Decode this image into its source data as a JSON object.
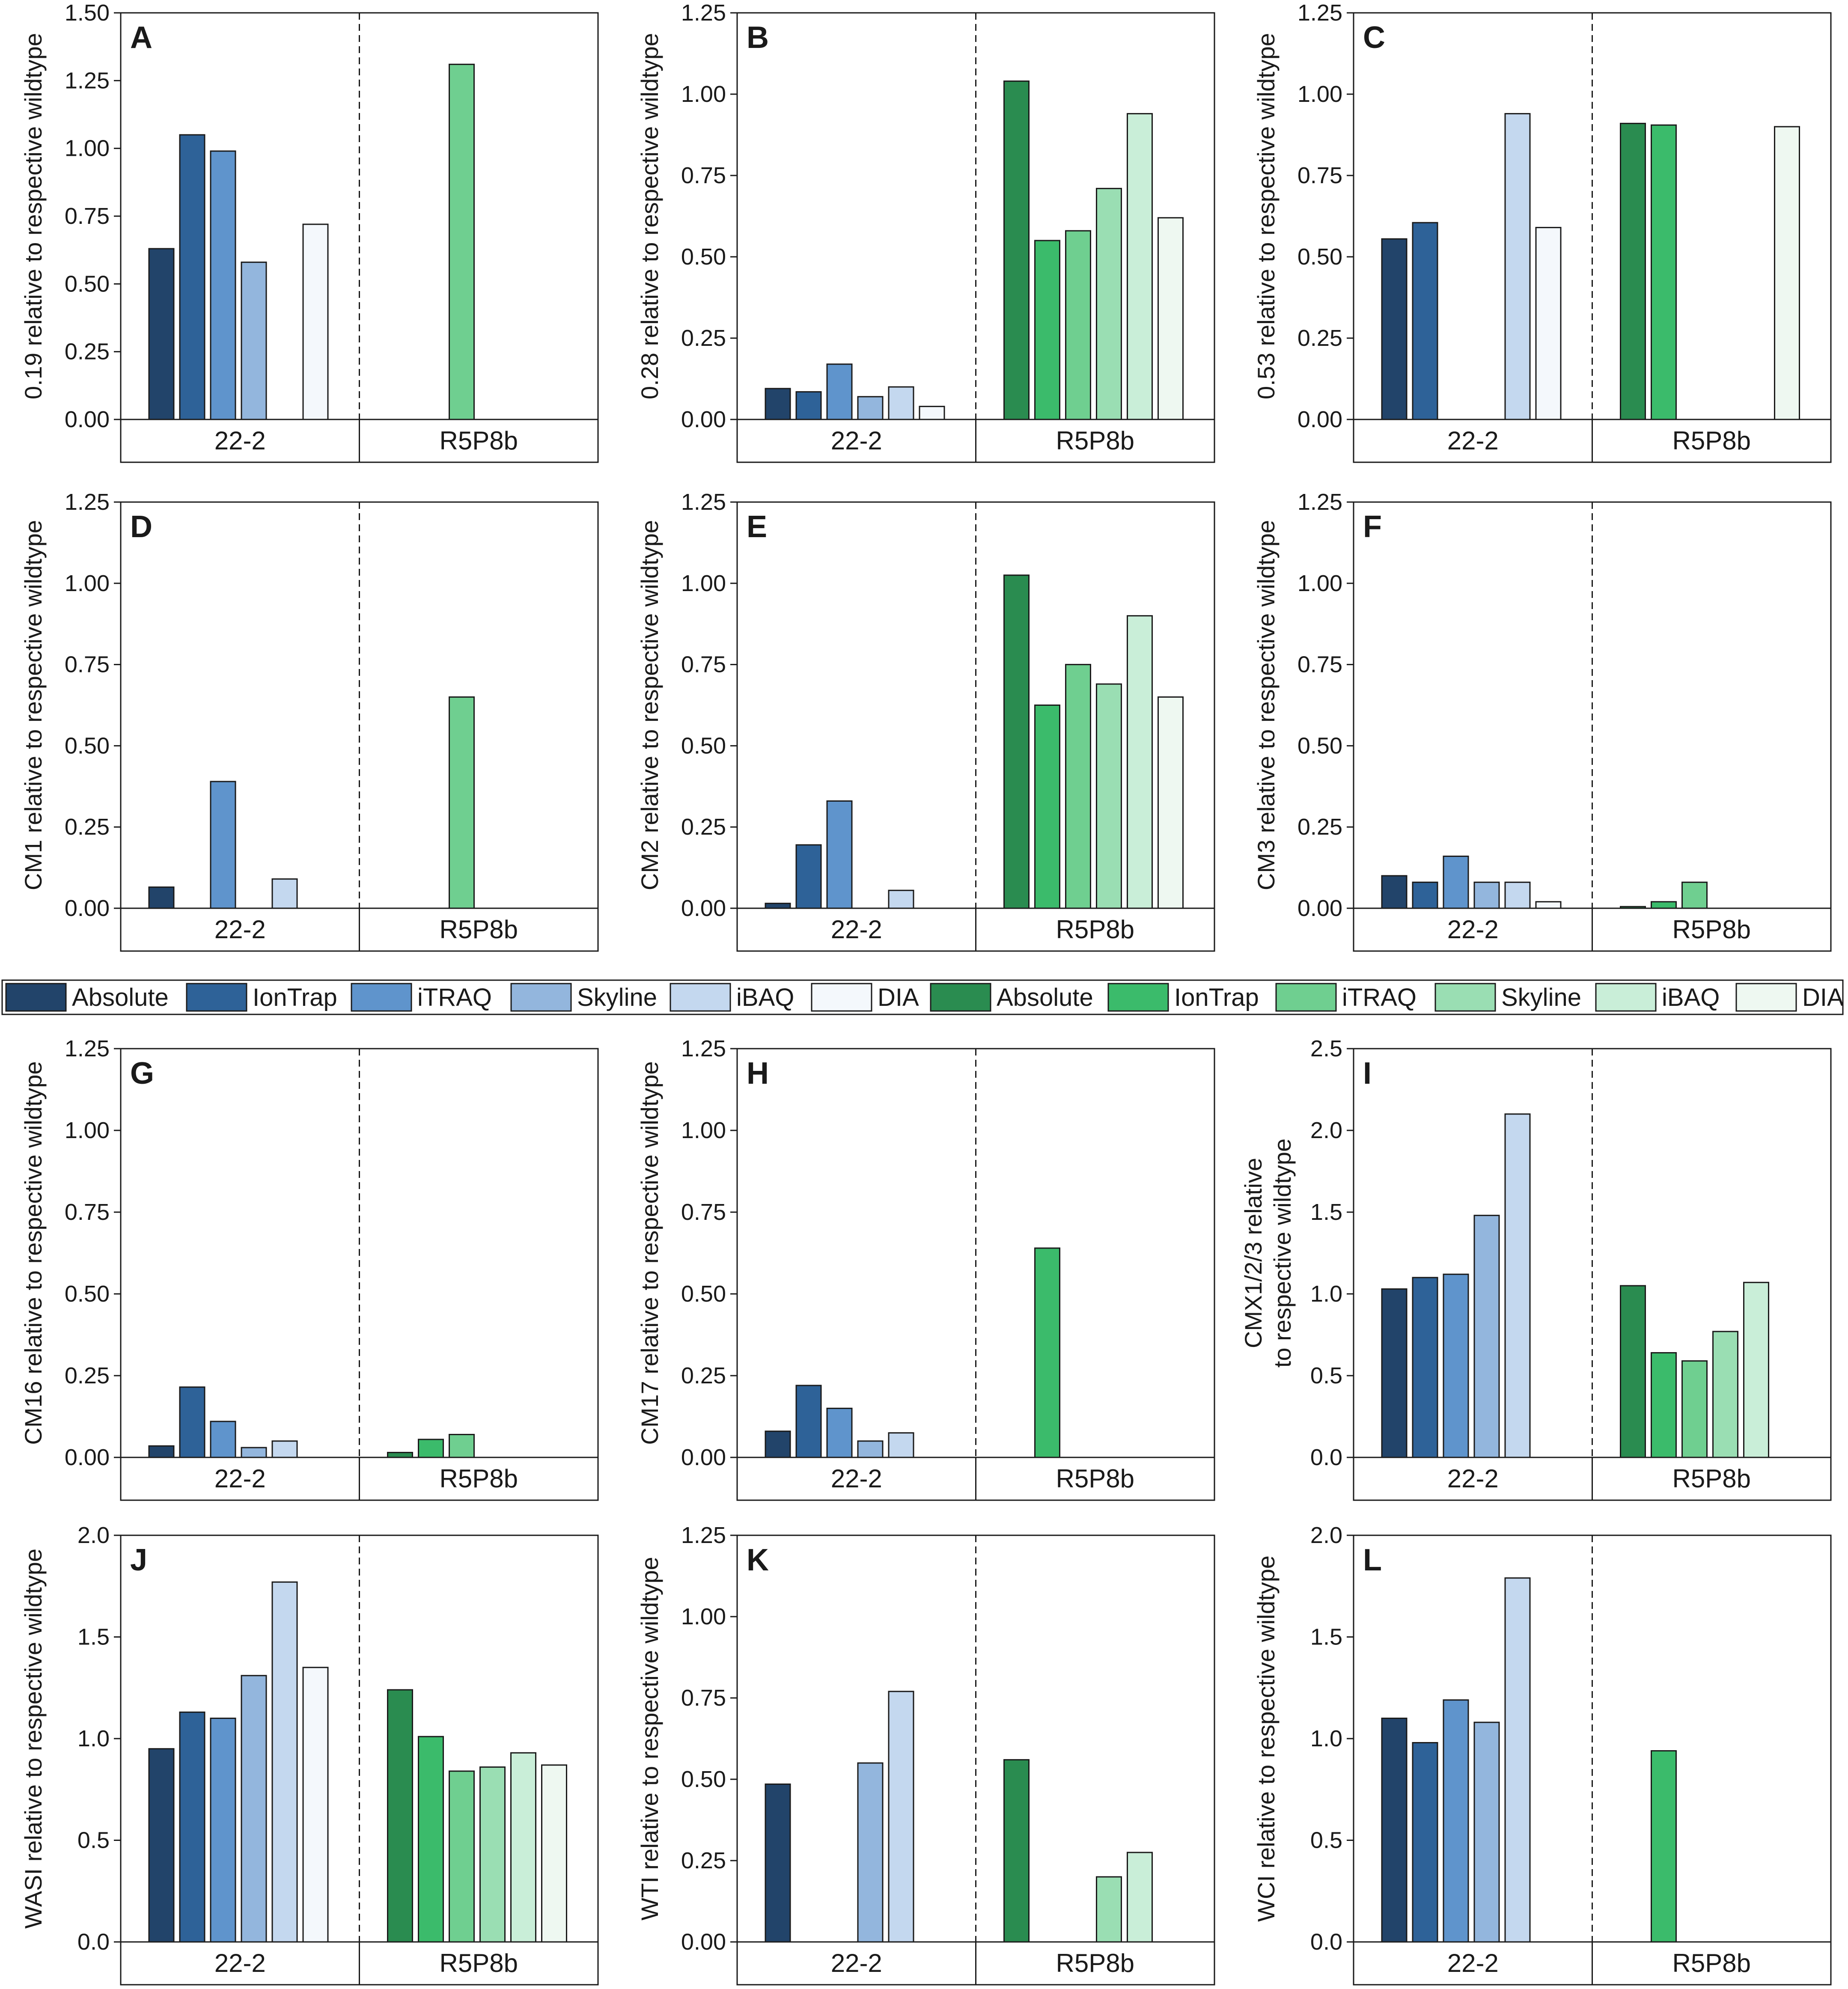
{
  "colors": {
    "blue": [
      "#22446a",
      "#2e6298",
      "#5f94cc",
      "#93b6dd",
      "#c4d8ef",
      "#f4f8fc"
    ],
    "green": [
      "#2a8c50",
      "#3bbb6b",
      "#6fcf90",
      "#9adeb3",
      "#c9eed8",
      "#eef8f1"
    ],
    "stroke": "#1a1a1a"
  },
  "legend": {
    "items": [
      {
        "label": "Absolute",
        "group": "blue",
        "index": 0
      },
      {
        "label": "IonTrap",
        "group": "blue",
        "index": 1
      },
      {
        "label": "iTRAQ",
        "group": "blue",
        "index": 2
      },
      {
        "label": "Skyline",
        "group": "blue",
        "index": 3
      },
      {
        "label": "iBAQ",
        "group": "blue",
        "index": 4
      },
      {
        "label": "DIA",
        "group": "blue",
        "index": 5
      },
      {
        "label": "Absolute",
        "group": "green",
        "index": 0
      },
      {
        "label": "IonTrap",
        "group": "green",
        "index": 1
      },
      {
        "label": "iTRAQ",
        "group": "green",
        "index": 2
      },
      {
        "label": "Skyline",
        "group": "green",
        "index": 3
      },
      {
        "label": "iBAQ",
        "group": "green",
        "index": 4
      },
      {
        "label": "DIA",
        "group": "green",
        "index": 5
      }
    ]
  },
  "chart_data": [
    {
      "type": "bar",
      "panel": "A",
      "ylabel": "0.19 relative to respective wildtype",
      "categories": [
        "22-2",
        "R5P8b"
      ],
      "ylim": [
        0,
        1.5
      ],
      "yticks": [
        "0.00",
        "0.25",
        "0.50",
        "0.75",
        "1.00",
        "1.25",
        "1.50"
      ],
      "series": [
        {
          "name": "Absolute",
          "values": [
            0.63,
            null
          ]
        },
        {
          "name": "IonTrap",
          "values": [
            1.05,
            null
          ]
        },
        {
          "name": "iTRAQ",
          "values": [
            0.99,
            1.31
          ]
        },
        {
          "name": "Skyline",
          "values": [
            0.58,
            null
          ]
        },
        {
          "name": "iBAQ",
          "values": [
            null,
            null
          ]
        },
        {
          "name": "DIA",
          "values": [
            0.72,
            null
          ]
        }
      ]
    },
    {
      "type": "bar",
      "panel": "B",
      "ylabel": "0.28 relative to respective wildtype",
      "categories": [
        "22-2",
        "R5P8b"
      ],
      "ylim": [
        0,
        1.25
      ],
      "yticks": [
        "0.00",
        "0.25",
        "0.50",
        "0.75",
        "1.00",
        "1.25"
      ],
      "series": [
        {
          "name": "Absolute",
          "values": [
            0.095,
            1.04
          ]
        },
        {
          "name": "IonTrap",
          "values": [
            0.085,
            0.55
          ]
        },
        {
          "name": "iTRAQ",
          "values": [
            0.17,
            0.58
          ]
        },
        {
          "name": "Skyline",
          "values": [
            0.07,
            0.71
          ]
        },
        {
          "name": "iBAQ",
          "values": [
            0.1,
            0.94
          ]
        },
        {
          "name": "DIA",
          "values": [
            0.04,
            0.62
          ]
        }
      ]
    },
    {
      "type": "bar",
      "panel": "C",
      "ylabel": "0.53 relative to respective wildtype",
      "categories": [
        "22-2",
        "R5P8b"
      ],
      "ylim": [
        0,
        1.25
      ],
      "yticks": [
        "0.00",
        "0.25",
        "0.50",
        "0.75",
        "1.00",
        "1.25"
      ],
      "series": [
        {
          "name": "Absolute",
          "values": [
            0.555,
            0.91
          ]
        },
        {
          "name": "IonTrap",
          "values": [
            0.605,
            0.905
          ]
        },
        {
          "name": "iTRAQ",
          "values": [
            null,
            null
          ]
        },
        {
          "name": "Skyline",
          "values": [
            null,
            null
          ]
        },
        {
          "name": "iBAQ",
          "values": [
            0.94,
            null
          ]
        },
        {
          "name": "DIA",
          "values": [
            0.59,
            0.9
          ]
        }
      ]
    },
    {
      "type": "bar",
      "panel": "D",
      "ylabel": "CM1 relative to respective wildtype",
      "categories": [
        "22-2",
        "R5P8b"
      ],
      "ylim": [
        0,
        1.25
      ],
      "yticks": [
        "0.00",
        "0.25",
        "0.50",
        "0.75",
        "1.00",
        "1.25"
      ],
      "series": [
        {
          "name": "Absolute",
          "values": [
            0.065,
            null
          ]
        },
        {
          "name": "IonTrap",
          "values": [
            null,
            null
          ]
        },
        {
          "name": "iTRAQ",
          "values": [
            0.39,
            0.65
          ]
        },
        {
          "name": "Skyline",
          "values": [
            null,
            null
          ]
        },
        {
          "name": "iBAQ",
          "values": [
            0.09,
            null
          ]
        },
        {
          "name": "DIA",
          "values": [
            null,
            null
          ]
        }
      ]
    },
    {
      "type": "bar",
      "panel": "E",
      "ylabel": "CM2 relative to respective wildtype",
      "categories": [
        "22-2",
        "R5P8b"
      ],
      "ylim": [
        0,
        1.25
      ],
      "yticks": [
        "0.00",
        "0.25",
        "0.50",
        "0.75",
        "1.00",
        "1.25"
      ],
      "series": [
        {
          "name": "Absolute",
          "values": [
            0.015,
            1.025
          ]
        },
        {
          "name": "IonTrap",
          "values": [
            0.195,
            0.625
          ]
        },
        {
          "name": "iTRAQ",
          "values": [
            0.33,
            0.75
          ]
        },
        {
          "name": "Skyline",
          "values": [
            null,
            0.69
          ]
        },
        {
          "name": "iBAQ",
          "values": [
            0.055,
            0.9
          ]
        },
        {
          "name": "DIA",
          "values": [
            null,
            0.65
          ]
        }
      ]
    },
    {
      "type": "bar",
      "panel": "F",
      "ylabel": "CM3 relative to respective wildtype",
      "categories": [
        "22-2",
        "R5P8b"
      ],
      "ylim": [
        0,
        1.25
      ],
      "yticks": [
        "0.00",
        "0.25",
        "0.50",
        "0.75",
        "1.00",
        "1.25"
      ],
      "series": [
        {
          "name": "Absolute",
          "values": [
            0.1,
            0.005
          ]
        },
        {
          "name": "IonTrap",
          "values": [
            0.08,
            0.02
          ]
        },
        {
          "name": "iTRAQ",
          "values": [
            0.16,
            0.08
          ]
        },
        {
          "name": "Skyline",
          "values": [
            0.08,
            null
          ]
        },
        {
          "name": "iBAQ",
          "values": [
            0.08,
            null
          ]
        },
        {
          "name": "DIA",
          "values": [
            0.02,
            null
          ]
        }
      ]
    },
    {
      "type": "bar",
      "panel": "G",
      "ylabel": "CM16 relative to respective wildtype",
      "categories": [
        "22-2",
        "R5P8b"
      ],
      "ylim": [
        0,
        1.25
      ],
      "yticks": [
        "0.00",
        "0.25",
        "0.50",
        "0.75",
        "1.00",
        "1.25"
      ],
      "series": [
        {
          "name": "Absolute",
          "values": [
            0.035,
            0.015
          ]
        },
        {
          "name": "IonTrap",
          "values": [
            0.215,
            0.055
          ]
        },
        {
          "name": "iTRAQ",
          "values": [
            0.11,
            0.07
          ]
        },
        {
          "name": "Skyline",
          "values": [
            0.03,
            null
          ]
        },
        {
          "name": "iBAQ",
          "values": [
            0.05,
            null
          ]
        },
        {
          "name": "DIA",
          "values": [
            null,
            null
          ]
        }
      ]
    },
    {
      "type": "bar",
      "panel": "H",
      "ylabel": "CM17 relative to respective wildtype",
      "categories": [
        "22-2",
        "R5P8b"
      ],
      "ylim": [
        0,
        1.25
      ],
      "yticks": [
        "0.00",
        "0.25",
        "0.50",
        "0.75",
        "1.00",
        "1.25"
      ],
      "series": [
        {
          "name": "Absolute",
          "values": [
            0.08,
            null
          ]
        },
        {
          "name": "IonTrap",
          "values": [
            0.22,
            0.64
          ]
        },
        {
          "name": "iTRAQ",
          "values": [
            0.15,
            null
          ]
        },
        {
          "name": "Skyline",
          "values": [
            0.05,
            null
          ]
        },
        {
          "name": "iBAQ",
          "values": [
            0.075,
            null
          ]
        },
        {
          "name": "DIA",
          "values": [
            null,
            null
          ]
        }
      ]
    },
    {
      "type": "bar",
      "panel": "I",
      "ylabel": [
        "CMX1/2/3 relative",
        "to respective wildtype"
      ],
      "categories": [
        "22-2",
        "R5P8b"
      ],
      "ylim": [
        0,
        2.5
      ],
      "yticks": [
        "0.0",
        "0.5",
        "1.0",
        "1.5",
        "2.0",
        "2.5"
      ],
      "series": [
        {
          "name": "Absolute",
          "values": [
            1.03,
            1.05
          ]
        },
        {
          "name": "IonTrap",
          "values": [
            1.1,
            0.64
          ]
        },
        {
          "name": "iTRAQ",
          "values": [
            1.12,
            0.59
          ]
        },
        {
          "name": "Skyline",
          "values": [
            1.48,
            0.77
          ]
        },
        {
          "name": "iBAQ",
          "values": [
            2.1,
            1.07
          ]
        },
        {
          "name": "DIA",
          "values": [
            null,
            null
          ]
        }
      ]
    },
    {
      "type": "bar",
      "panel": "J",
      "ylabel": "WASI relative to respective wildtype",
      "categories": [
        "22-2",
        "R5P8b"
      ],
      "ylim": [
        0,
        2.0
      ],
      "yticks": [
        "0.0",
        "0.5",
        "1.0",
        "1.5",
        "2.0"
      ],
      "series": [
        {
          "name": "Absolute",
          "values": [
            0.95,
            1.24
          ]
        },
        {
          "name": "IonTrap",
          "values": [
            1.13,
            1.01
          ]
        },
        {
          "name": "iTRAQ",
          "values": [
            1.1,
            0.84
          ]
        },
        {
          "name": "Skyline",
          "values": [
            1.31,
            0.86
          ]
        },
        {
          "name": "iBAQ",
          "values": [
            1.77,
            0.93
          ]
        },
        {
          "name": "DIA",
          "values": [
            1.35,
            0.87
          ]
        }
      ]
    },
    {
      "type": "bar",
      "panel": "K",
      "ylabel": "WTI relative to respective wildtype",
      "categories": [
        "22-2",
        "R5P8b"
      ],
      "ylim": [
        0,
        1.25
      ],
      "yticks": [
        "0.00",
        "0.25",
        "0.50",
        "0.75",
        "1.00",
        "1.25"
      ],
      "series": [
        {
          "name": "Absolute",
          "values": [
            0.485,
            0.56
          ]
        },
        {
          "name": "IonTrap",
          "values": [
            null,
            null
          ]
        },
        {
          "name": "iTRAQ",
          "values": [
            null,
            null
          ]
        },
        {
          "name": "Skyline",
          "values": [
            0.55,
            0.2
          ]
        },
        {
          "name": "iBAQ",
          "values": [
            0.77,
            0.275
          ]
        },
        {
          "name": "DIA",
          "values": [
            null,
            null
          ]
        }
      ]
    },
    {
      "type": "bar",
      "panel": "L",
      "ylabel": "WCI relative to respective wildtype",
      "categories": [
        "22-2",
        "R5P8b"
      ],
      "ylim": [
        0,
        2.0
      ],
      "yticks": [
        "0.0",
        "0.5",
        "1.0",
        "1.5",
        "2.0"
      ],
      "series": [
        {
          "name": "Absolute",
          "values": [
            1.1,
            null
          ]
        },
        {
          "name": "IonTrap",
          "values": [
            0.98,
            0.94
          ]
        },
        {
          "name": "iTRAQ",
          "values": [
            1.19,
            null
          ]
        },
        {
          "name": "Skyline",
          "values": [
            1.08,
            null
          ]
        },
        {
          "name": "iBAQ",
          "values": [
            1.79,
            null
          ]
        },
        {
          "name": "DIA",
          "values": [
            null,
            null
          ]
        }
      ]
    }
  ]
}
